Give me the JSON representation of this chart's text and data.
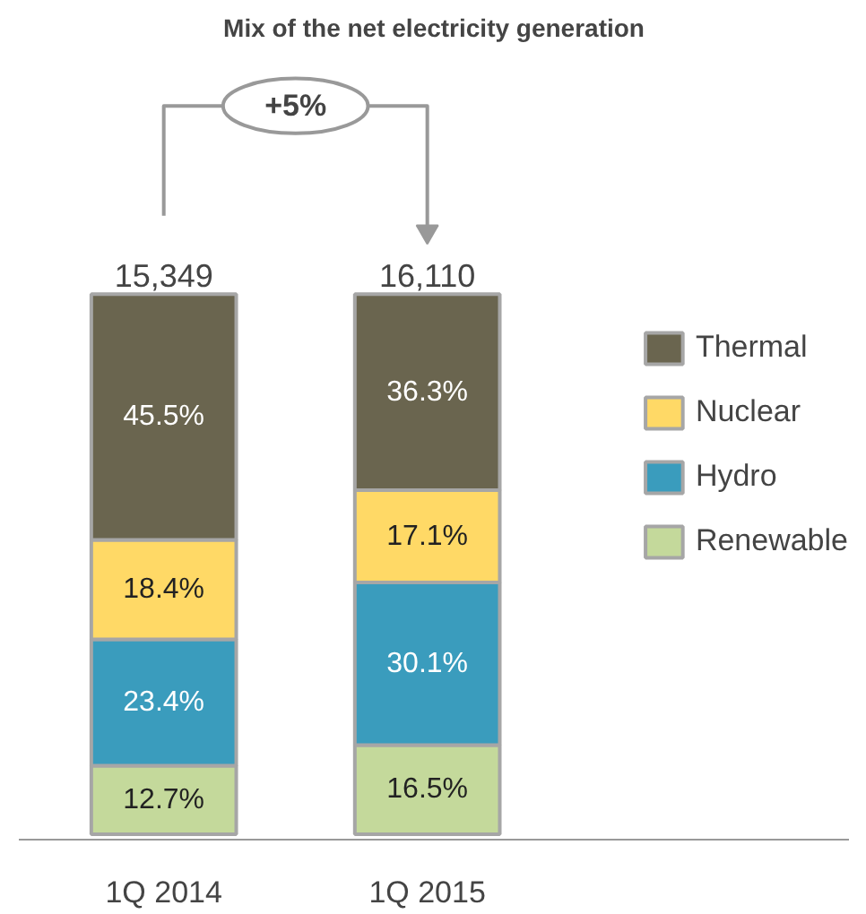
{
  "chart_data": {
    "type": "bar",
    "title": "Mix of the net electricity generation",
    "categories": [
      "1Q 2014",
      "1Q 2015"
    ],
    "stacked": true,
    "legend": "right",
    "series": [
      {
        "name": "Renewable",
        "color": "#c4d99b",
        "values": [
          12.7,
          16.5
        ],
        "value_labels": [
          "12.7%",
          "16.5%"
        ]
      },
      {
        "name": "Hydro",
        "color": "#3a9cbd",
        "values": [
          23.4,
          30.1
        ],
        "value_labels": [
          "23.4%",
          "30.1%"
        ]
      },
      {
        "name": "Nuclear",
        "color": "#ffd966",
        "values": [
          18.4,
          17.1
        ],
        "value_labels": [
          "18.4%",
          "17.1%"
        ]
      },
      {
        "name": "Thermal",
        "color": "#6a654f",
        "values": [
          45.5,
          36.3
        ],
        "value_labels": [
          "45.5%",
          "36.3%"
        ]
      }
    ],
    "annotations": [
      {
        "text": "15,349",
        "x": "1Q 2014",
        "y": 100
      },
      {
        "text": "16,110",
        "x": "1Q 2015",
        "y": 100
      },
      "+5%"
    ]
  }
}
